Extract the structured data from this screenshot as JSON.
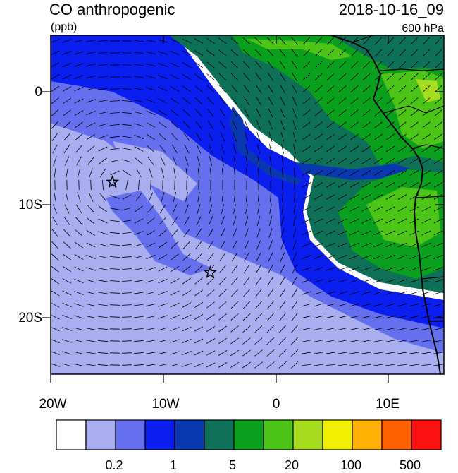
{
  "header": {
    "title": "CO anthropogenic",
    "units": "(ppb)",
    "timestamp": "2018-10-16_09",
    "level": "600 hPa"
  },
  "map": {
    "y_ticks": [
      {
        "label": "0",
        "lat": 0
      },
      {
        "label": "10S",
        "lat": -10
      },
      {
        "label": "20S",
        "lat": -20
      }
    ],
    "x_ticks": [
      {
        "label": "20W",
        "lon": -20
      },
      {
        "label": "10W",
        "lon": -10
      },
      {
        "label": "0",
        "lon": 0
      },
      {
        "label": "10E",
        "lon": 10
      }
    ],
    "lon_range": [
      -20,
      15
    ],
    "lat_range": [
      -25,
      5
    ],
    "markers": [
      {
        "name": "star-marker",
        "lon": -14.5,
        "lat": -8
      },
      {
        "name": "star-marker",
        "lon": -5.8,
        "lat": -16
      }
    ]
  },
  "colorbar": {
    "colors": [
      "#ffffff",
      "#a8aef0",
      "#6670ee",
      "#0a1ef0",
      "#0a38b0",
      "#0f7058",
      "#0aa01e",
      "#4cc418",
      "#a8dc1e",
      "#f0f000",
      "#ffb000",
      "#ff6000",
      "#ff1010"
    ],
    "labels": [
      {
        "text": "0.2",
        "boundary": 2
      },
      {
        "text": "1",
        "boundary": 4
      },
      {
        "text": "5",
        "boundary": 6
      },
      {
        "text": "20",
        "boundary": 8
      },
      {
        "text": "100",
        "boundary": 10
      },
      {
        "text": "500",
        "boundary": 12
      }
    ]
  }
}
